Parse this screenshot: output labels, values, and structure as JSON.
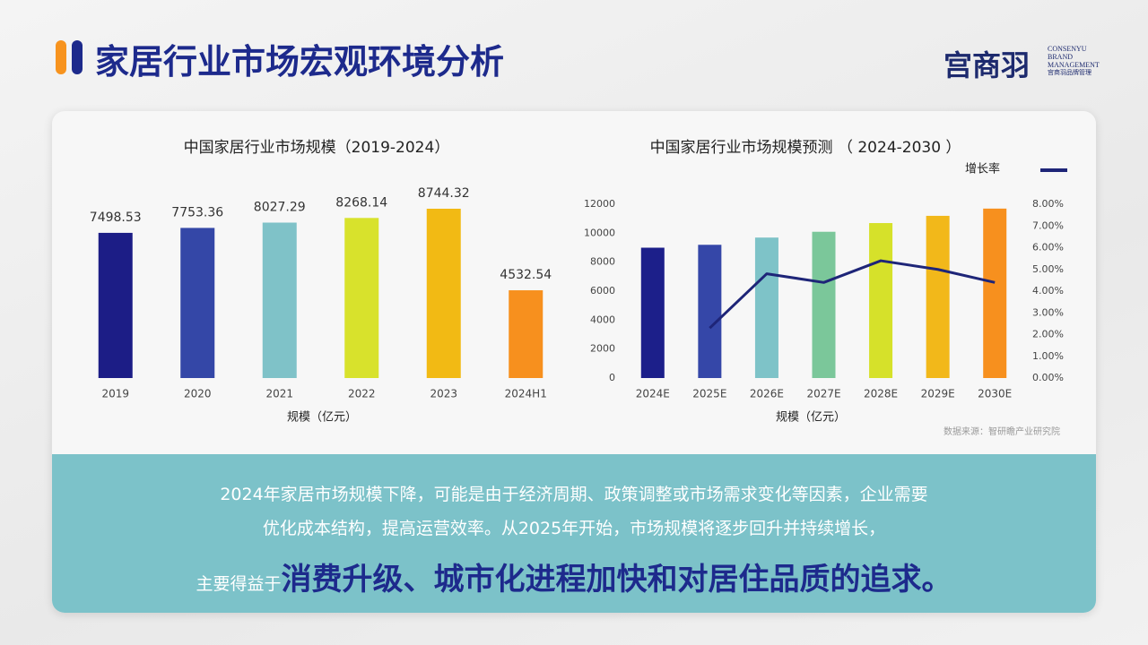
{
  "header": {
    "title": "家居行业市场宏观环境分析"
  },
  "logo": {
    "mark": "宫商羽",
    "line1": "CONSENYU",
    "line2": "BRAND",
    "line3": "MANAGEMENT",
    "line4": "宫商羽品牌管理"
  },
  "chart_data": [
    {
      "type": "bar",
      "title": "中国家居行业市场规模（2019-2024）",
      "x_label": "规模（亿元）",
      "categories": [
        "2019",
        "2020",
        "2021",
        "2022",
        "2023",
        "2024H1"
      ],
      "values": [
        7498.53,
        7753.36,
        8027.29,
        8268.14,
        8744.32,
        4532.54
      ],
      "colors": [
        "#1c1d86",
        "#3447a7",
        "#7fc2c8",
        "#d8e22c",
        "#f2ba14",
        "#f7901e"
      ]
    },
    {
      "type": "combo",
      "title": "中国家居行业市场规模预测 （ 2024-2030 ）",
      "x_label": "规模（亿元）",
      "categories": [
        "2024E",
        "2025E",
        "2026E",
        "2027E",
        "2028E",
        "2029E",
        "2030E"
      ],
      "series": [
        {
          "type": "bar",
          "colors": [
            "#1c1f8a",
            "#3547a8",
            "#7ec3c8",
            "#7bc79a",
            "#d6e12a",
            "#f2b81a",
            "#f7901e"
          ],
          "values": [
            9000,
            9200,
            9700,
            10100,
            10700,
            11200,
            11700
          ]
        },
        {
          "type": "line",
          "name": "增长率",
          "axis": "y2",
          "color": "#1e2578",
          "values": [
            null,
            2.3,
            4.8,
            4.4,
            5.4,
            5.0,
            4.4
          ]
        }
      ],
      "ylim": [
        0,
        12000
      ],
      "yticks": [
        0,
        2000,
        4000,
        6000,
        8000,
        10000,
        12000
      ],
      "y2lim": [
        0,
        8
      ],
      "y2ticks": [
        {
          "value": 0,
          "label": "0.00%"
        },
        {
          "value": 1,
          "label": "1.00%"
        },
        {
          "value": 2,
          "label": "2.00%"
        },
        {
          "value": 3,
          "label": "3.00%"
        },
        {
          "value": 4,
          "label": "4.00%"
        },
        {
          "value": 5,
          "label": "5.00%"
        },
        {
          "value": 6,
          "label": "6.00%"
        },
        {
          "value": 7,
          "label": "7.00%"
        },
        {
          "value": 8,
          "label": "8.00%"
        }
      ],
      "grid": false,
      "legend": "top-right"
    }
  ],
  "source": "数据来源：智研瞻产业研究院",
  "conclusion": {
    "line1": "2024年家居市场规模下降，可能是由于经济周期、政策调整或市场需求变化等因素，企业需要",
    "line2": "优化成本结构，提高运营效率。从2025年开始，市场规模将逐步回升并持续增长，",
    "lead": "主要得益于",
    "emphasis": "消费升级、城市化进程加快和对居住品质的追求。"
  }
}
